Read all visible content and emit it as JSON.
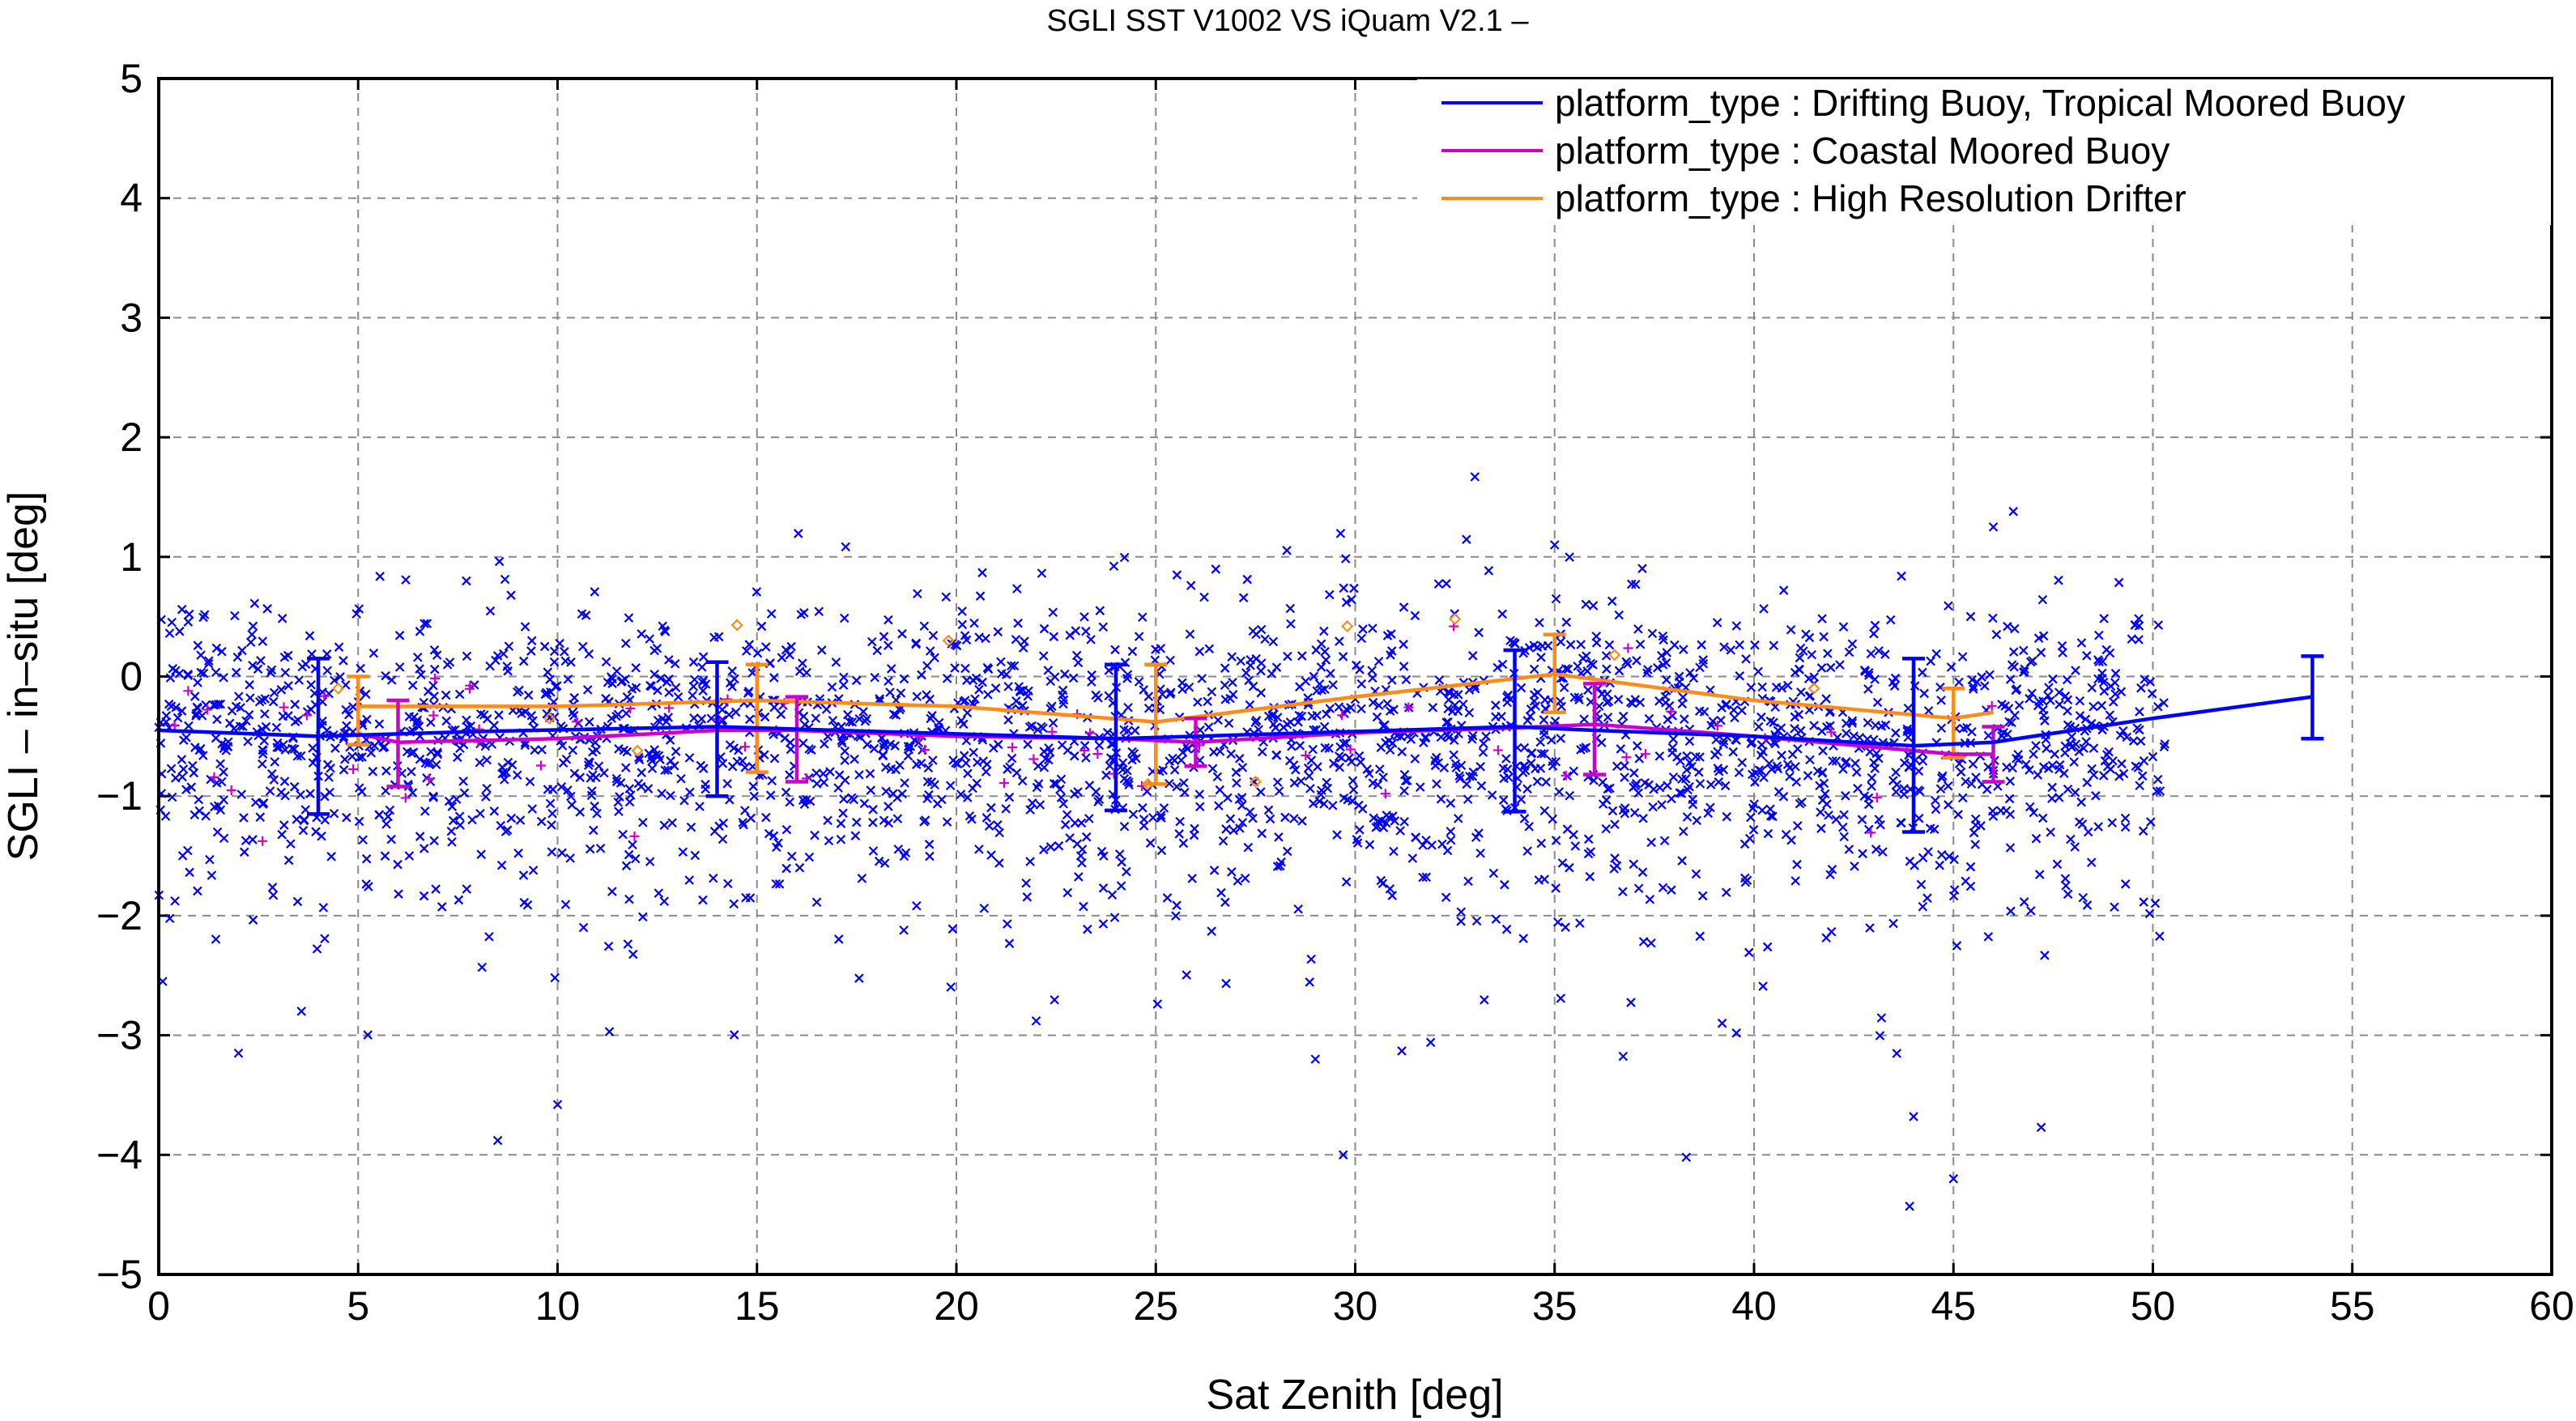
{
  "chart_data": {
    "type": "scatter",
    "title": "SGLI SST V1002 VS iQuam V2.1  –",
    "xlabel": "Sat Zenith [deg]",
    "ylabel": "SGLI – in–situ [deg]",
    "xlim": [
      0,
      60
    ],
    "ylim": [
      -5,
      5
    ],
    "xticks": [
      0,
      5,
      10,
      15,
      20,
      25,
      30,
      35,
      40,
      45,
      50,
      55,
      60
    ],
    "yticks": [
      -5,
      -4,
      -3,
      -2,
      -1,
      0,
      1,
      2,
      3,
      4,
      5
    ],
    "xtick_labels": [
      "0",
      "5",
      "10",
      "15",
      "20",
      "25",
      "30",
      "35",
      "40",
      "45",
      "50",
      "55",
      "60"
    ],
    "ytick_labels": [
      "−5",
      "−4",
      "−3",
      "−2",
      "−1",
      "0",
      "1",
      "2",
      "3",
      "4",
      "5"
    ],
    "grid": true,
    "legend_position": "top-right",
    "series": [
      {
        "name": "platform_type : Drifting Buoy, Tropical Moored Buoy",
        "color": "#0000ff",
        "marker": "x",
        "mean_line": {
          "x": [
            0,
            4,
            8,
            14,
            20,
            24,
            26,
            30,
            34,
            36,
            40,
            44,
            46,
            48,
            50,
            54
          ],
          "y": [
            -0.45,
            -0.5,
            -0.46,
            -0.42,
            -0.48,
            -0.52,
            -0.5,
            -0.46,
            -0.42,
            -0.45,
            -0.5,
            -0.58,
            -0.55,
            -0.45,
            -0.35,
            -0.17
          ]
        },
        "error_bars": [
          {
            "x": 4,
            "mean": -0.5,
            "lo": -1.15,
            "hi": 0.15
          },
          {
            "x": 14,
            "mean": -0.42,
            "lo": -1.0,
            "hi": 0.12
          },
          {
            "x": 24,
            "mean": -0.52,
            "lo": -1.12,
            "hi": 0.1
          },
          {
            "x": 34,
            "mean": -0.42,
            "lo": -1.13,
            "hi": 0.22
          },
          {
            "x": 44,
            "mean": -0.58,
            "lo": -1.3,
            "hi": 0.15
          },
          {
            "x": 54,
            "mean": -0.17,
            "lo": -0.52,
            "hi": 0.17
          }
        ],
        "outliers": [
          {
            "x": 0.1,
            "y": -2.55
          },
          {
            "x": 2.0,
            "y": -3.15
          },
          {
            "x": 8.5,
            "y": -3.88
          },
          {
            "x": 10.0,
            "y": -3.58
          },
          {
            "x": 11.3,
            "y": -2.97
          },
          {
            "x": 22.0,
            "y": -2.88
          },
          {
            "x": 29.0,
            "y": -3.2
          },
          {
            "x": 29.7,
            "y": -4.0
          },
          {
            "x": 38.3,
            "y": -4.02
          },
          {
            "x": 39.2,
            "y": -2.9
          },
          {
            "x": 44.0,
            "y": -3.68
          },
          {
            "x": 43.9,
            "y": -4.43
          },
          {
            "x": 45.0,
            "y": -4.2
          },
          {
            "x": 47.2,
            "y": -3.77
          },
          {
            "x": 33.0,
            "y": 1.67
          },
          {
            "x": 46.5,
            "y": 1.38
          },
          {
            "x": 46.0,
            "y": 1.25
          },
          {
            "x": 35.0,
            "y": 1.1
          }
        ]
      },
      {
        "name": "platform_type : Coastal Moored Buoy",
        "color": "#cc00cc",
        "marker": "+",
        "mean_line": {
          "x": [
            5,
            6,
            10,
            14,
            16,
            20,
            24,
            26,
            30,
            34,
            36,
            40,
            45,
            46
          ],
          "y": [
            -0.48,
            -0.55,
            -0.52,
            -0.45,
            -0.45,
            -0.5,
            -0.52,
            -0.55,
            -0.47,
            -0.43,
            -0.4,
            -0.5,
            -0.65,
            -0.65
          ]
        },
        "error_bars": [
          {
            "x": 6,
            "mean": -0.55,
            "lo": -0.92,
            "hi": -0.2
          },
          {
            "x": 16,
            "mean": -0.45,
            "lo": -0.88,
            "hi": -0.17
          },
          {
            "x": 26,
            "mean": -0.55,
            "lo": -0.75,
            "hi": -0.35
          },
          {
            "x": 36,
            "mean": -0.4,
            "lo": -0.82,
            "hi": -0.06
          },
          {
            "x": 46,
            "mean": -0.65,
            "lo": -0.88,
            "hi": -0.42
          }
        ]
      },
      {
        "name": "platform_type : High Resolution Drifter",
        "color": "#ff8c1a",
        "marker": "diamond",
        "mean_line": {
          "x": [
            5,
            10,
            15,
            20,
            25,
            30,
            35,
            40,
            45,
            46
          ],
          "y": [
            -0.25,
            -0.25,
            -0.2,
            -0.25,
            -0.38,
            -0.17,
            0.02,
            -0.2,
            -0.35,
            -0.3
          ]
        },
        "error_bars": [
          {
            "x": 5,
            "mean": -0.25,
            "lo": -0.57,
            "hi": 0.0
          },
          {
            "x": 15,
            "mean": -0.2,
            "lo": -0.8,
            "hi": 0.1
          },
          {
            "x": 25,
            "mean": -0.38,
            "lo": -0.9,
            "hi": 0.1
          },
          {
            "x": 35,
            "mean": 0.02,
            "lo": -0.3,
            "hi": 0.35
          },
          {
            "x": 45,
            "mean": -0.35,
            "lo": -0.68,
            "hi": -0.1
          }
        ],
        "points": [
          {
            "x": 14.5,
            "y": 0.43
          },
          {
            "x": 19.8,
            "y": 0.3
          },
          {
            "x": 29.8,
            "y": 0.42
          },
          {
            "x": 32.5,
            "y": 0.48
          },
          {
            "x": 36.5,
            "y": 0.18
          },
          {
            "x": 27.5,
            "y": -0.88
          },
          {
            "x": 24.8,
            "y": -0.9
          },
          {
            "x": 4.5,
            "y": -0.1
          },
          {
            "x": 9.8,
            "y": -0.35
          },
          {
            "x": 41.5,
            "y": -0.1
          },
          {
            "x": 12.0,
            "y": -0.62
          }
        ]
      }
    ]
  }
}
